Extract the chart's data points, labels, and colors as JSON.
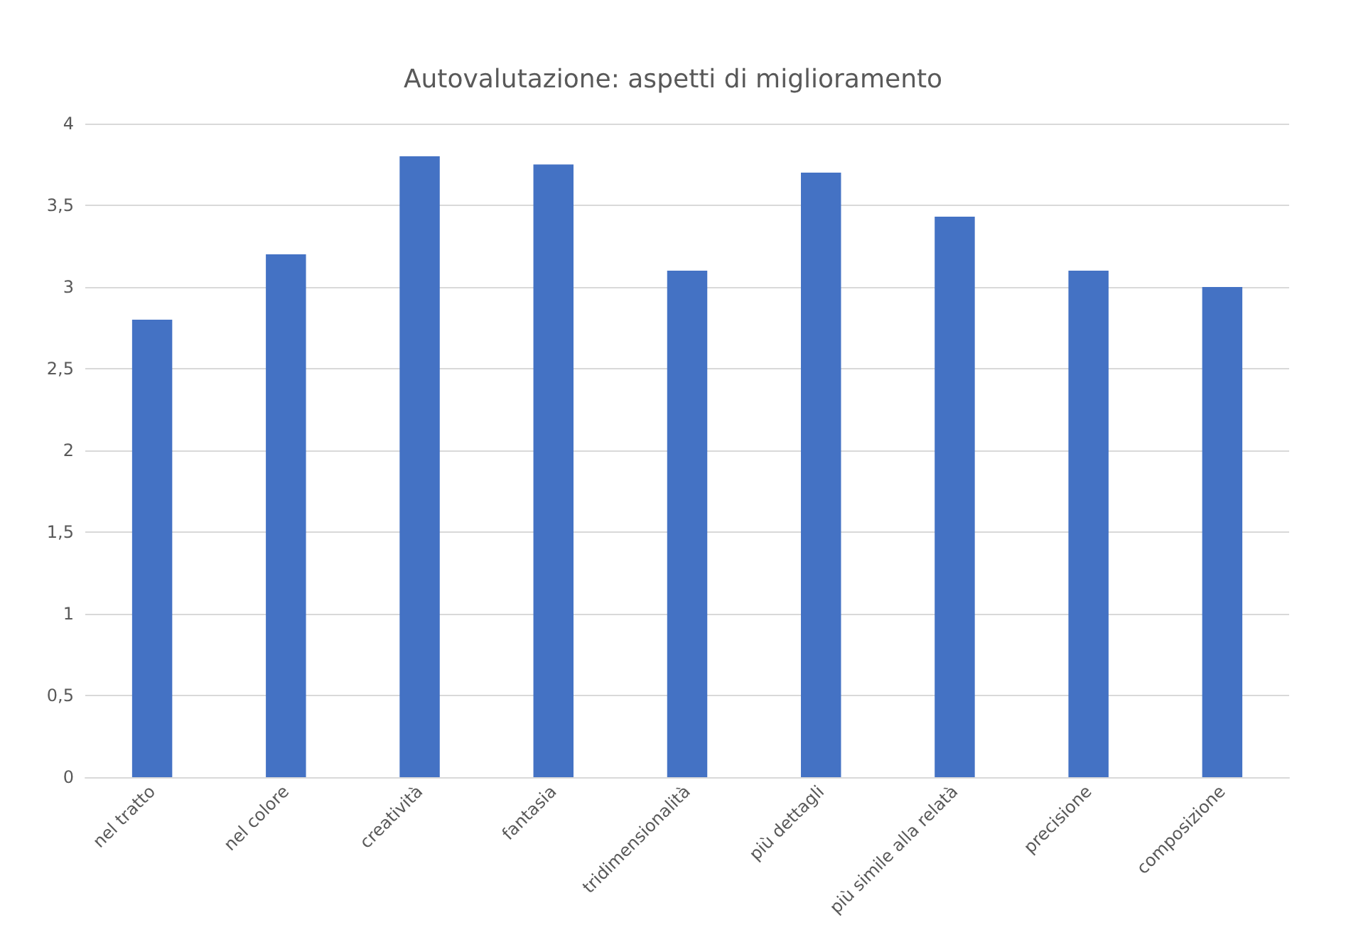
{
  "chart_data": {
    "type": "bar",
    "title": "Autovalutazione: aspetti di miglioramento",
    "categories": [
      "nel tratto",
      "nel colore",
      "creatività",
      "fantasia",
      "tridimensionalità",
      "più dettagli",
      "più simile alla relatà",
      "precisione",
      "composizione"
    ],
    "values": [
      2.8,
      3.2,
      3.8,
      3.75,
      3.1,
      3.7,
      3.43,
      3.1,
      3.0
    ],
    "color": "#4472c4",
    "ylim": [
      0,
      4
    ],
    "yticks": [
      {
        "value": 0,
        "label": "0"
      },
      {
        "value": 0.5,
        "label": "0,5"
      },
      {
        "value": 1,
        "label": "1"
      },
      {
        "value": 1.5,
        "label": "1,5"
      },
      {
        "value": 2,
        "label": "2"
      },
      {
        "value": 2.5,
        "label": "2,5"
      },
      {
        "value": 3,
        "label": "3"
      },
      {
        "value": 3.5,
        "label": "3,5"
      },
      {
        "value": 4,
        "label": "4"
      }
    ],
    "grid": "y"
  }
}
